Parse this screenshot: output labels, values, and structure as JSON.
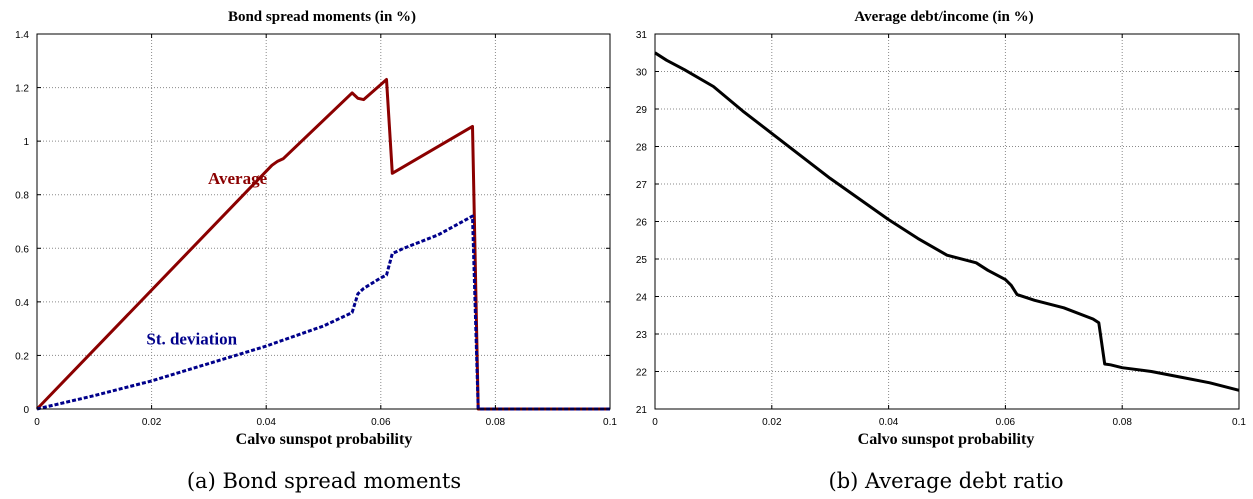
{
  "chart_data": [
    {
      "type": "line",
      "title": "Bond spread moments (in %)",
      "xlabel": "Calvo sunspot probability",
      "ylabel": "",
      "xlim": [
        0,
        0.1
      ],
      "ylim": [
        0,
        1.4
      ],
      "xticks": [
        "0",
        "0.02",
        "0.04",
        "0.06",
        "0.08",
        "0.1"
      ],
      "yticks": [
        "0",
        "0.2",
        "0.4",
        "0.6",
        "0.8",
        "1",
        "1.2",
        "1.4"
      ],
      "grid": true,
      "caption": "(a)  Bond spread moments",
      "annotations": [
        {
          "text": "Average",
          "color": "#8b0000",
          "at": [
            0.035,
            0.84
          ]
        },
        {
          "text": "St. deviation",
          "color": "#00008b",
          "at": [
            0.027,
            0.24
          ]
        }
      ],
      "series": [
        {
          "name": "Average",
          "color": "#8b0000",
          "style": "solid",
          "x": [
            0,
            0.041,
            0.042,
            0.043,
            0.055,
            0.056,
            0.057,
            0.061,
            0.062,
            0.076,
            0.077,
            0.1
          ],
          "y": [
            0,
            0.91,
            0.925,
            0.935,
            1.18,
            1.16,
            1.155,
            1.23,
            0.88,
            1.055,
            0,
            0
          ]
        },
        {
          "name": "St. deviation",
          "color": "#00008b",
          "style": "dashed",
          "x": [
            0,
            0.01,
            0.02,
            0.03,
            0.04,
            0.042,
            0.05,
            0.055,
            0.0555,
            0.056,
            0.057,
            0.06,
            0.061,
            0.062,
            0.064,
            0.07,
            0.076,
            0.077,
            0.1
          ],
          "y": [
            0,
            0.05,
            0.105,
            0.17,
            0.235,
            0.25,
            0.31,
            0.36,
            0.395,
            0.43,
            0.45,
            0.49,
            0.5,
            0.58,
            0.6,
            0.65,
            0.72,
            0,
            0
          ]
        }
      ]
    },
    {
      "type": "line",
      "title": "Average debt/income (in %)",
      "xlabel": "Calvo sunspot probability",
      "ylabel": "",
      "xlim": [
        0,
        0.1
      ],
      "ylim": [
        21,
        31
      ],
      "xticks": [
        "0",
        "0.02",
        "0.04",
        "0.06",
        "0.08",
        "0.1"
      ],
      "yticks": [
        "21",
        "22",
        "23",
        "24",
        "25",
        "26",
        "27",
        "28",
        "29",
        "30",
        "31"
      ],
      "grid": true,
      "caption": "(b)  Average debt ratio",
      "series": [
        {
          "name": "Average debt/income",
          "color": "#000000",
          "style": "solid",
          "x": [
            0,
            0.002,
            0.005,
            0.01,
            0.015,
            0.02,
            0.025,
            0.03,
            0.035,
            0.04,
            0.045,
            0.05,
            0.055,
            0.057,
            0.06,
            0.061,
            0.062,
            0.065,
            0.07,
            0.075,
            0.076,
            0.077,
            0.078,
            0.08,
            0.085,
            0.09,
            0.095,
            0.1
          ],
          "y": [
            30.5,
            30.3,
            30.05,
            29.6,
            28.95,
            28.35,
            27.75,
            27.15,
            26.6,
            26.05,
            25.55,
            25.1,
            24.9,
            24.7,
            24.45,
            24.3,
            24.05,
            23.9,
            23.7,
            23.4,
            23.3,
            22.2,
            22.18,
            22.1,
            22.0,
            21.85,
            21.7,
            21.5
          ]
        }
      ]
    }
  ]
}
